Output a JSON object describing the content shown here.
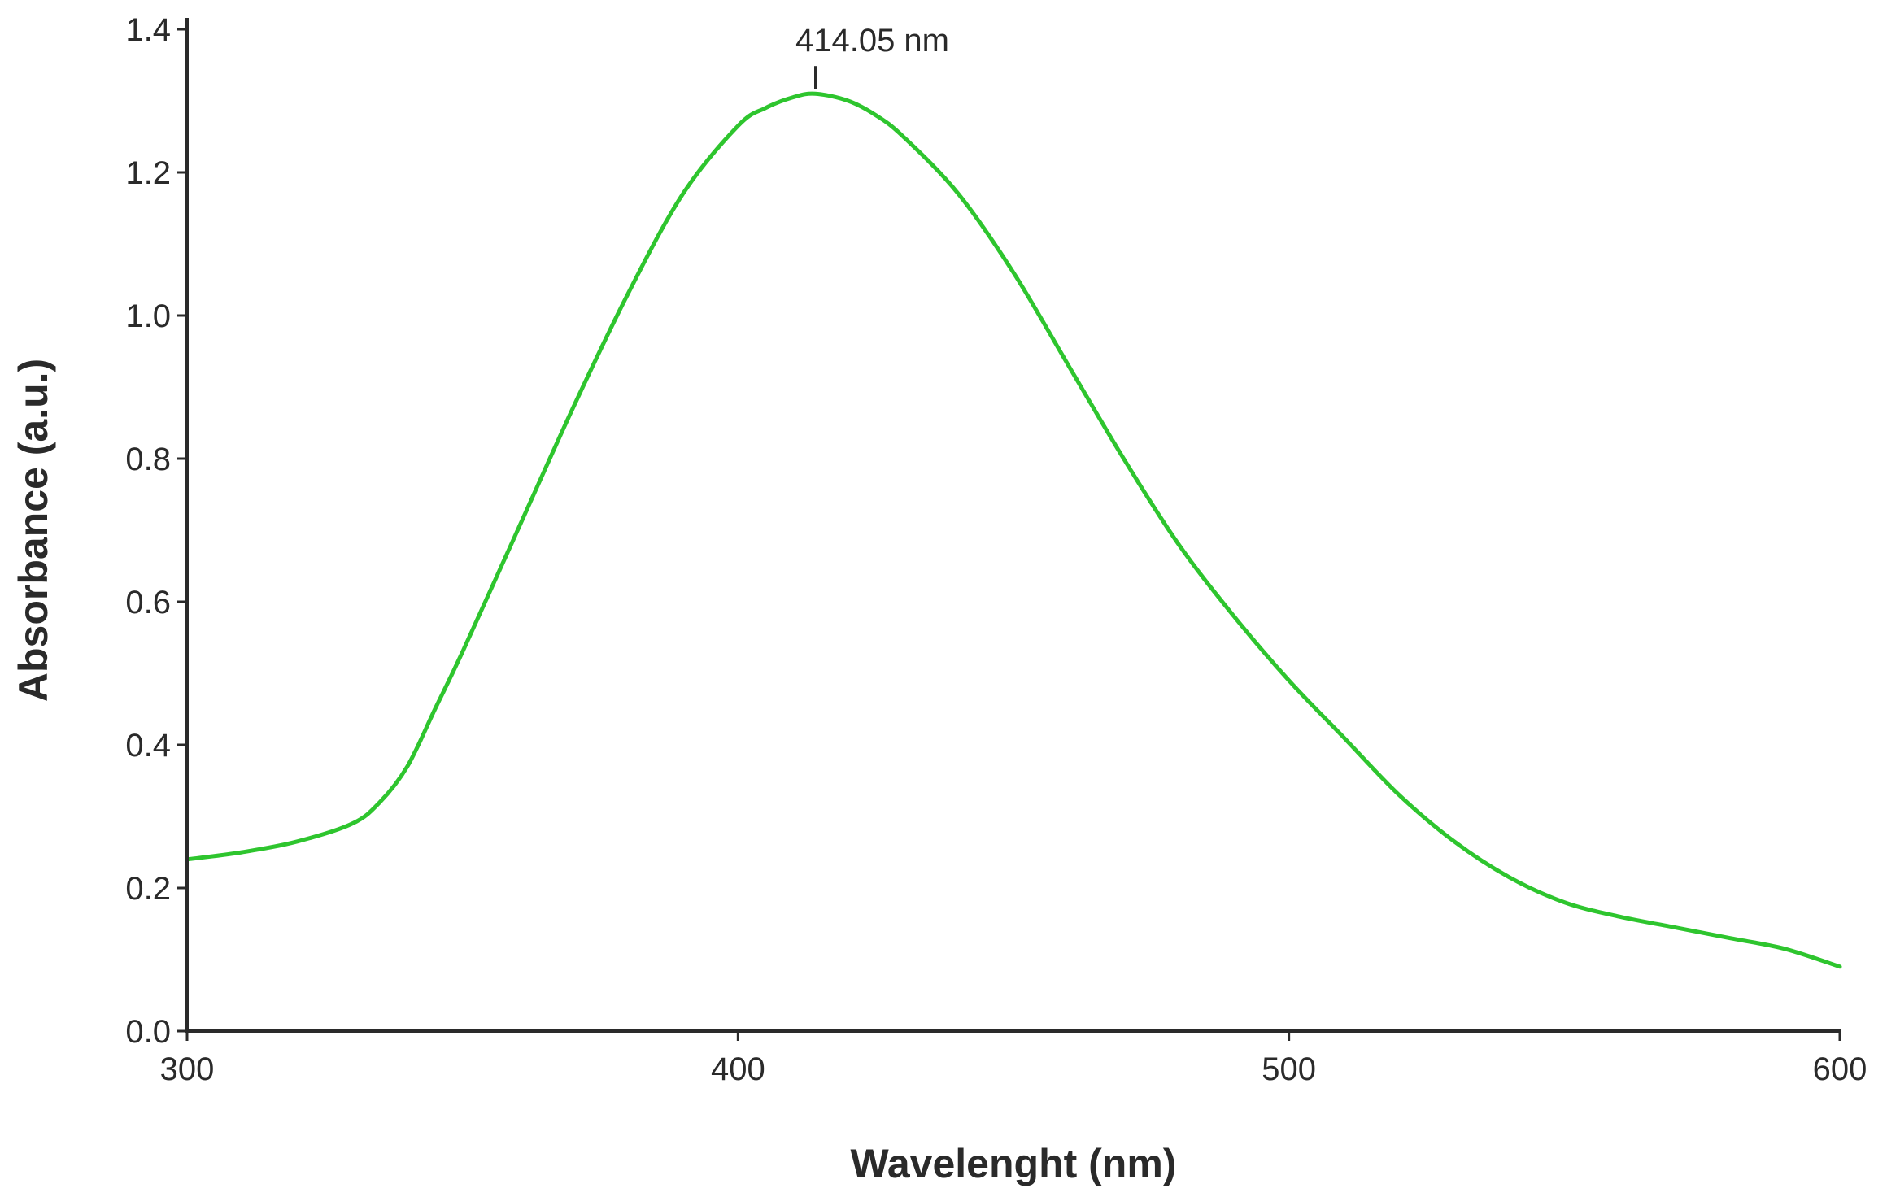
{
  "chart_data": {
    "type": "line",
    "title": "",
    "xlabel": "Wavelenght (nm)",
    "ylabel": "Absorbance (a.u.)",
    "xlim": [
      300,
      600
    ],
    "ylim": [
      0,
      1.4
    ],
    "x_ticks": [
      300,
      400,
      500,
      600
    ],
    "x_tick_labels": [
      "300",
      "400",
      "500",
      "600"
    ],
    "y_ticks": [
      0,
      0.2,
      0.4,
      0.6,
      0.8,
      1.0,
      1.2,
      1.4
    ],
    "y_tick_labels": [
      "0.0",
      "0.2",
      "0.4",
      "0.6",
      "0.8",
      "1.0",
      "1.2",
      "1.4"
    ],
    "grid": false,
    "legend": "none",
    "series": [
      {
        "color": "#2ec52e",
        "x": [
          300,
          310,
          320,
          330,
          335,
          340,
          345,
          350,
          360,
          370,
          380,
          390,
          400,
          405,
          410,
          414,
          420,
          425,
          430,
          440,
          450,
          460,
          470,
          480,
          490,
          500,
          510,
          520,
          530,
          540,
          550,
          560,
          570,
          580,
          590,
          600
        ],
        "y": [
          0.24,
          0.25,
          0.265,
          0.29,
          0.32,
          0.37,
          0.45,
          0.53,
          0.7,
          0.87,
          1.03,
          1.17,
          1.265,
          1.29,
          1.305,
          1.31,
          1.3,
          1.28,
          1.25,
          1.17,
          1.06,
          0.93,
          0.8,
          0.68,
          0.58,
          0.49,
          0.41,
          0.33,
          0.265,
          0.215,
          0.18,
          0.16,
          0.145,
          0.13,
          0.115,
          0.09
        ]
      }
    ],
    "annotations": [
      {
        "text": "414.05 nm",
        "x": 414.05
      }
    ]
  }
}
